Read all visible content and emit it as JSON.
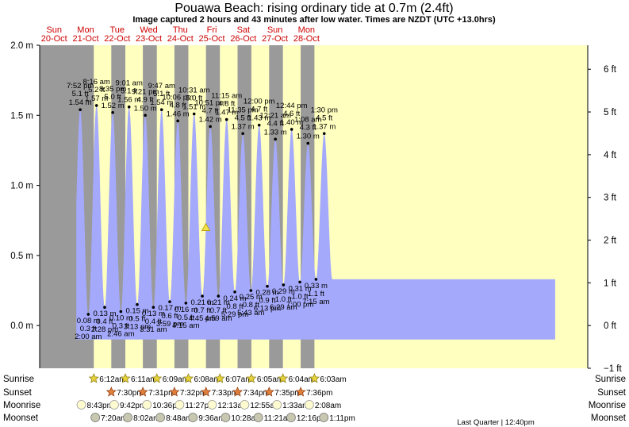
{
  "title": "Pouawa Beach: rising  ordinary tide at 0.7m (2.4ft)",
  "subtitle": "Image captured 2 hours and 43 minutes after low water. Times are NZDT (UTC +13.0hrs)",
  "colors": {
    "night": "#9a9a9a",
    "day": "#ffffc0",
    "tide": "#a4a9fb",
    "red": "#cc0000",
    "marker": "#f2e24a"
  },
  "days": [
    {
      "dow": "Sun",
      "date": "20-Oct"
    },
    {
      "dow": "Mon",
      "date": "21-Oct"
    },
    {
      "dow": "Tue",
      "date": "22-Oct"
    },
    {
      "dow": "Wed",
      "date": "23-Oct"
    },
    {
      "dow": "Thu",
      "date": "24-Oct"
    },
    {
      "dow": "Fri",
      "date": "25-Oct"
    },
    {
      "dow": "Sat",
      "date": "26-Oct"
    },
    {
      "dow": "Sun",
      "date": "27-Oct"
    },
    {
      "dow": "Mon",
      "date": "28-Oct"
    }
  ],
  "chart_data": {
    "type": "area",
    "y_left": {
      "unit": "m",
      "ticks": [
        {
          "v": 0,
          "label": "0.0 m"
        },
        {
          "v": 0.5,
          "label": "0.5 m"
        },
        {
          "v": 1.0,
          "label": "1.0 m"
        },
        {
          "v": 1.5,
          "label": "1.5 m"
        },
        {
          "v": 2.0,
          "label": "2.0 m"
        }
      ],
      "range": [
        -0.3048,
        2.0
      ]
    },
    "y_right": {
      "unit": "ft",
      "ticks": [
        {
          "v": -1,
          "label": "−1 ft"
        },
        {
          "v": 0,
          "label": "0 ft"
        },
        {
          "v": 1,
          "label": "1 ft"
        },
        {
          "v": 2,
          "label": "2 ft"
        },
        {
          "v": 3,
          "label": "3 ft"
        },
        {
          "v": 4,
          "label": "4 ft"
        },
        {
          "v": 5,
          "label": "5 ft"
        },
        {
          "v": 6,
          "label": "6 ft"
        }
      ]
    },
    "current": {
      "t": "24-Oct 7:28 pm",
      "height_m": 0.7
    },
    "tides": [
      {
        "type": "high",
        "t": "20-Oct 7:52 pm",
        "time": "7:52 pm",
        "ft": "5.1 ft",
        "m": "1.54 m",
        "h": 1.54
      },
      {
        "type": "low",
        "t": "21-Oct 2:00 am",
        "time": "2:00 am",
        "ft": "0.3 ft",
        "m": "0.08 m",
        "h": 0.08
      },
      {
        "type": "high",
        "t": "21-Oct 8:16 am",
        "time": "8:16 am",
        "ft": "5.2 ft",
        "m": "1.57 m",
        "h": 1.57
      },
      {
        "type": "low",
        "t": "21-Oct 2:28 pm",
        "time": "2:28 pm",
        "ft": "0.4 ft",
        "m": "0.13 m",
        "h": 0.13
      },
      {
        "type": "high",
        "t": "21-Oct 8:35 pm",
        "time": "8:35 pm",
        "ft": "5.0 ft",
        "m": "1.52 m",
        "h": 1.52
      },
      {
        "type": "low",
        "t": "22-Oct 2:46 am",
        "time": "2:46 am",
        "ft": "0.3 ft",
        "m": "0.10 m",
        "h": 0.1
      },
      {
        "type": "high",
        "t": "22-Oct 9:01 am",
        "time": "9:01 am",
        "ft": "5.1 ft",
        "m": "1.56 m",
        "h": 1.56
      },
      {
        "type": "low",
        "t": "22-Oct 3:13 pm",
        "time": "3:13 pm",
        "ft": "0.5 ft",
        "m": "0.15 m",
        "h": 0.15
      },
      {
        "type": "high",
        "t": "22-Oct 9:21 pm",
        "time": "9:21 pm",
        "ft": "4.9 ft",
        "m": "1.50 m",
        "h": 1.5
      },
      {
        "type": "low",
        "t": "23-Oct 3:31 am",
        "time": "3:31 am",
        "ft": "0.4 ft",
        "m": "0.13 m",
        "h": 0.13
      },
      {
        "type": "high",
        "t": "23-Oct 9:47 am",
        "time": "9:47 am",
        "ft": "5.1 ft",
        "m": "1.54 m",
        "h": 1.54
      },
      {
        "type": "low",
        "t": "23-Oct 3:59 pm",
        "time": "3:59 pm",
        "ft": "0.6 ft",
        "m": "0.17 m",
        "h": 0.17
      },
      {
        "type": "high",
        "t": "23-Oct 10:06 pm",
        "time": "10:06 pm",
        "ft": "4.8 ft",
        "m": "1.46 m",
        "h": 1.46
      },
      {
        "type": "low",
        "t": "24-Oct 4:15 am",
        "time": "4:15 am",
        "ft": "0.5 ft",
        "m": "0.16 m",
        "h": 0.16
      },
      {
        "type": "high",
        "t": "24-Oct 10:31 am",
        "time": "10:31 am",
        "ft": "5.0 ft",
        "m": "1.51 m",
        "h": 1.51
      },
      {
        "type": "low",
        "t": "24-Oct 4:45 pm",
        "time": "4:45 pm",
        "ft": "0.7 ft",
        "m": "0.21 m",
        "h": 0.21
      },
      {
        "type": "high",
        "t": "24-Oct 10:51 pm",
        "time": "10:51 pm",
        "ft": "4.7 ft",
        "m": "1.42 m",
        "h": 1.42
      },
      {
        "type": "low",
        "t": "25-Oct 4:59 am",
        "time": "4:59 am",
        "ft": "0.7 ft",
        "m": "0.21 m",
        "h": 0.21
      },
      {
        "type": "high",
        "t": "25-Oct 11:15 am",
        "time": "11:15 am",
        "ft": "4.8 ft",
        "m": "1.47 m",
        "h": 1.47
      },
      {
        "type": "low",
        "t": "25-Oct 5:29 pm",
        "time": "5:29 pm",
        "ft": "0.8 ft",
        "m": "0.24 m",
        "h": 0.24
      },
      {
        "type": "high",
        "t": "25-Oct 11:35 pm",
        "time": "11:35 pm",
        "ft": "4.5 ft",
        "m": "1.37 m",
        "h": 1.37
      },
      {
        "type": "low",
        "t": "26-Oct 5:43 am",
        "time": "5:43 am",
        "ft": "0.8 ft",
        "m": "0.25 m",
        "h": 0.25
      },
      {
        "type": "high",
        "t": "26-Oct 12:00 pm",
        "time": "12:00 pm",
        "ft": "4.7 ft",
        "m": "1.43 m",
        "h": 1.43
      },
      {
        "type": "low",
        "t": "26-Oct 6:13 pm",
        "time": "6:13 pm",
        "ft": "0.9 ft",
        "m": "0.28 m",
        "h": 0.28
      },
      {
        "type": "high",
        "t": "27-Oct 12:21 am",
        "time": "12:21 am",
        "ft": "4.4 ft",
        "m": "1.33 m",
        "h": 1.33
      },
      {
        "type": "low",
        "t": "27-Oct 6:29 am",
        "time": "6:29 am",
        "ft": "1.0 ft",
        "m": "0.29 m",
        "h": 0.29
      },
      {
        "type": "high",
        "t": "27-Oct 12:44 pm",
        "time": "12:44 pm",
        "ft": "4.6 ft",
        "m": "1.40 m",
        "h": 1.4
      },
      {
        "type": "low",
        "t": "27-Oct 7:00 pm",
        "time": "7:00 pm",
        "ft": "1.0 ft",
        "m": "0.31 m",
        "h": 0.31
      },
      {
        "type": "high",
        "t": "28-Oct 1:08 am",
        "time": "1:08 am",
        "ft": "4.3 ft",
        "m": "1.30 m",
        "h": 1.3
      },
      {
        "type": "low",
        "t": "28-Oct 7:15 am",
        "time": "7:15 am",
        "ft": "1.1 ft",
        "m": "0.33 m",
        "h": 0.33
      },
      {
        "type": "high",
        "t": "28-Oct 1:30 pm",
        "time": "1:30 pm",
        "ft": "4.5 ft",
        "m": "1.37 m",
        "h": 1.37
      }
    ],
    "sun": [
      {
        "rise": "21-Oct 6:12am",
        "set": "21-Oct 7:30pm"
      },
      {
        "rise": "22-Oct 6:11am",
        "set": "22-Oct 7:31pm"
      },
      {
        "rise": "23-Oct 6:09am",
        "set": "23-Oct 7:32pm"
      },
      {
        "rise": "24-Oct 6:08am",
        "set": "24-Oct 7:33pm"
      },
      {
        "rise": "25-Oct 6:07am",
        "set": "25-Oct 7:34pm"
      },
      {
        "rise": "26-Oct 6:05am",
        "set": "26-Oct 7:35pm"
      },
      {
        "rise": "27-Oct 6:04am",
        "set": "27-Oct 7:36pm"
      },
      {
        "rise": "28-Oct 6:03am",
        "set": ""
      }
    ]
  },
  "rows": {
    "labels": {
      "sunrise": "Sunrise",
      "sunset": "Sunset",
      "moonrise": "Moonrise",
      "moonset": "Moonset"
    },
    "sunrise": [
      {
        "t": "21-Oct 6:12am",
        "label": "6:12am"
      },
      {
        "t": "22-Oct 6:11am",
        "label": "6:11am"
      },
      {
        "t": "23-Oct 6:09am",
        "label": "6:09am"
      },
      {
        "t": "24-Oct 6:08am",
        "label": "6:08am"
      },
      {
        "t": "25-Oct 6:07am",
        "label": "6:07am"
      },
      {
        "t": "26-Oct 6:05am",
        "label": "6:05am"
      },
      {
        "t": "27-Oct 6:04am",
        "label": "6:04am"
      },
      {
        "t": "28-Oct 6:03am",
        "label": "6:03am"
      }
    ],
    "sunset": [
      {
        "t": "21-Oct 7:30pm",
        "label": "7:30pm"
      },
      {
        "t": "22-Oct 7:31pm",
        "label": "7:31pm"
      },
      {
        "t": "23-Oct 7:32pm",
        "label": "7:32pm"
      },
      {
        "t": "24-Oct 7:33pm",
        "label": "7:33pm"
      },
      {
        "t": "25-Oct 7:34pm",
        "label": "7:34pm"
      },
      {
        "t": "26-Oct 7:35pm",
        "label": "7:35pm"
      },
      {
        "t": "27-Oct 7:36pm",
        "label": "7:36pm"
      }
    ],
    "moonrise": [
      {
        "t": "20-Oct 8:43pm",
        "label": "8:43pm"
      },
      {
        "t": "21-Oct 9:42pm",
        "label": "9:42pm"
      },
      {
        "t": "22-Oct 10:36pm",
        "label": "10:36pm"
      },
      {
        "t": "23-Oct 11:27pm",
        "label": "11:27pm"
      },
      {
        "t": "25-Oct 12:13am",
        "label": "12:13am"
      },
      {
        "t": "26-Oct 12:55am",
        "label": "12:55am"
      },
      {
        "t": "27-Oct 1:33am",
        "label": "1:33am"
      },
      {
        "t": "28-Oct 2:08am",
        "label": "2:08am"
      }
    ],
    "moonset": [
      {
        "t": "21-Oct 7:20am",
        "label": "7:20am"
      },
      {
        "t": "22-Oct 8:02am",
        "label": "8:02am"
      },
      {
        "t": "23-Oct 8:48am",
        "label": "8:48am"
      },
      {
        "t": "24-Oct 9:36am",
        "label": "9:36am"
      },
      {
        "t": "25-Oct 10:28am",
        "label": "10:28am"
      },
      {
        "t": "26-Oct 11:21am",
        "label": "11:21am"
      },
      {
        "t": "27-Oct 12:16pm",
        "label": "12:16pm"
      },
      {
        "t": "28-Oct 1:11pm",
        "label": "1:11pm"
      }
    ],
    "phase": "Last Quarter | 12:40pm"
  }
}
